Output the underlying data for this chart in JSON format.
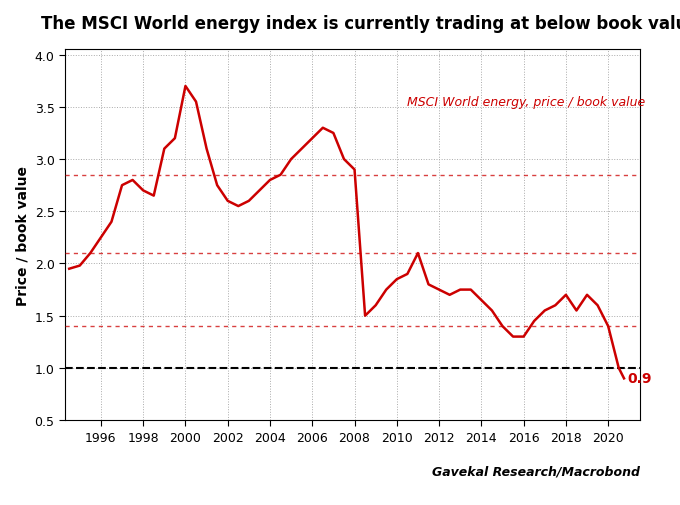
{
  "title": "The MSCI World energy index is currently trading at below book value",
  "ylabel": "Price / book value",
  "xlabel_source": "Gavekal Research/Macrobond",
  "legend_label": "MSCI World energy, price / book value",
  "hlines": [
    2.85,
    2.1,
    1.4
  ],
  "hline_book_value": 1.0,
  "annotation_value": "0.9",
  "annotation_color": "#cc0000",
  "line_color": "#cc0000",
  "hline_color": "#cc0000",
  "hline_book_color": "#000000",
  "ylim": [
    0.5,
    4.0
  ],
  "xtick_years": [
    1996,
    1998,
    2000,
    2002,
    2004,
    2006,
    2008,
    2010,
    2012,
    2014,
    2016,
    2018,
    2020
  ],
  "series": {
    "years_x": [
      1994.5,
      1995.0,
      1995.5,
      1996.0,
      1996.5,
      1997.0,
      1997.5,
      1998.0,
      1998.5,
      1999.0,
      1999.5,
      2000.0,
      2000.5,
      2001.0,
      2001.5,
      2002.0,
      2002.5,
      2003.0,
      2003.5,
      2004.0,
      2004.5,
      2005.0,
      2005.5,
      2006.0,
      2006.5,
      2007.0,
      2007.5,
      2008.0,
      2008.5,
      2009.0,
      2009.5,
      2010.0,
      2010.5,
      2011.0,
      2011.5,
      2012.0,
      2012.5,
      2013.0,
      2013.5,
      2014.0,
      2014.5,
      2015.0,
      2015.5,
      2016.0,
      2016.5,
      2017.0,
      2017.5,
      2018.0,
      2018.5,
      2019.0,
      2019.5,
      2020.0,
      2020.5,
      2020.75
    ],
    "values": [
      1.95,
      1.98,
      2.1,
      2.25,
      2.4,
      2.75,
      2.8,
      2.7,
      2.65,
      3.1,
      3.2,
      3.7,
      3.55,
      3.1,
      2.75,
      2.6,
      2.55,
      2.6,
      2.7,
      2.8,
      2.85,
      3.0,
      3.1,
      3.2,
      3.3,
      3.25,
      3.0,
      2.9,
      1.5,
      1.6,
      1.75,
      1.85,
      1.9,
      2.1,
      1.8,
      1.75,
      1.7,
      1.75,
      1.75,
      1.65,
      1.55,
      1.4,
      1.3,
      1.3,
      1.45,
      1.55,
      1.6,
      1.7,
      1.55,
      1.7,
      1.6,
      1.4,
      1.0,
      0.9
    ]
  }
}
